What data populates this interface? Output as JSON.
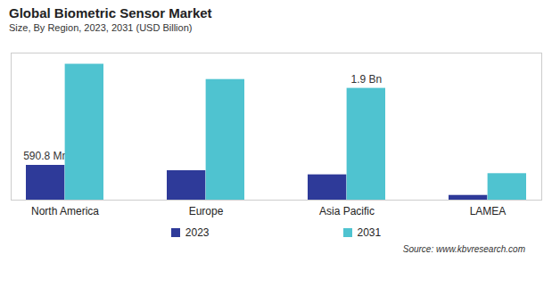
{
  "chart_data": {
    "type": "bar",
    "title": "Global Biometric Sensor Market",
    "subtitle": "Size, By Region, 2023, 2031 (USD Billion)",
    "source": "Source: www.kbvresearch.com",
    "categories": [
      "North America",
      "Europe",
      "Asia Pacific",
      "LAMEA"
    ],
    "series": [
      {
        "name": "2023",
        "color": "#2e3a99",
        "values": [
          0.5908,
          0.5,
          0.43,
          0.08
        ],
        "value_labels": [
          "590.8 Mn",
          null,
          null,
          null
        ]
      },
      {
        "name": "2031",
        "color": "#4fc3d0",
        "values": [
          2.31,
          2.05,
          1.9,
          0.45
        ],
        "value_labels": [
          null,
          null,
          "1.9 Bn",
          null
        ]
      }
    ],
    "ylim": [
      0,
      2.5
    ],
    "tick_labels": "x",
    "legend": "bottom"
  }
}
